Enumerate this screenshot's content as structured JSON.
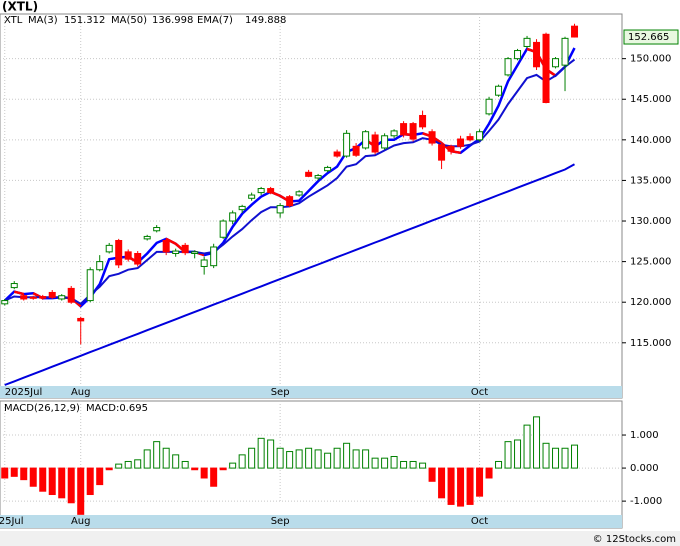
{
  "title": "(XTL)",
  "footer": "© 12Stocks.com",
  "chart_data": [
    {
      "type": "candlestick",
      "ticker": "XTL",
      "xlim": [
        -0.5,
        65
      ],
      "xticks": [
        {
          "value": 0,
          "label": "2025Jul"
        },
        {
          "value": 8,
          "label": "Aug"
        },
        {
          "value": 29,
          "label": "Sep"
        },
        {
          "value": 50,
          "label": "Oct"
        }
      ],
      "ylim": [
        108.2,
        155.5
      ],
      "yticks": [
        {
          "value": 115,
          "label": "115.000"
        },
        {
          "value": 120,
          "label": "120.000"
        },
        {
          "value": 125,
          "label": "125.000"
        },
        {
          "value": 130,
          "label": "130.000"
        },
        {
          "value": 135,
          "label": "135.000"
        },
        {
          "value": 140,
          "label": "140.000"
        },
        {
          "value": 145,
          "label": "145.000"
        },
        {
          "value": 150,
          "label": "150.000"
        }
      ],
      "grid": true,
      "up_color": "#008000",
      "down_color": "#ff0000",
      "last_price": 152.665,
      "open": [
        119.8,
        121.8,
        120.8,
        120.6,
        120.7,
        121.2,
        120.4,
        121.7,
        118.0,
        120.2,
        124.0,
        126.2,
        127.6,
        126.2,
        126.0,
        127.8,
        128.8,
        127.6,
        126.0,
        127.0,
        126.0,
        124.4,
        124.5,
        128.0,
        130.0,
        131.4,
        132.8,
        133.5,
        134.0,
        131.0,
        133.0,
        133.2,
        136.0,
        135.3,
        136.2,
        138.5,
        138.0,
        139.2,
        139.0,
        140.6,
        139.0,
        140.5,
        142.0,
        142.0,
        143.0,
        141.0,
        139.4,
        139.2,
        140.1,
        140.4,
        140.0,
        143.2,
        145.5,
        148.0,
        150.0,
        151.5,
        152.0,
        153.0,
        149.0,
        149.2,
        154.0
      ],
      "high": [
        120.4,
        122.6,
        121.0,
        120.8,
        120.9,
        121.5,
        121.0,
        122.0,
        118.2,
        124.3,
        125.8,
        127.3,
        127.8,
        126.5,
        126.3,
        128.3,
        129.5,
        127.9,
        126.6,
        127.3,
        126.4,
        125.6,
        127.2,
        130.2,
        131.3,
        132.0,
        133.5,
        134.2,
        134.2,
        132.2,
        133.2,
        133.8,
        136.3,
        135.8,
        136.8,
        138.8,
        141.2,
        139.6,
        141.2,
        141.0,
        140.8,
        141.3,
        142.3,
        142.2,
        143.6,
        141.3,
        139.6,
        139.4,
        140.5,
        140.8,
        141.3,
        145.3,
        146.8,
        150.2,
        151.2,
        152.8,
        152.4,
        153.2,
        150.2,
        152.7,
        154.3
      ],
      "low": [
        119.6,
        121.6,
        120.2,
        120.3,
        120.3,
        120.4,
        120.2,
        119.8,
        114.8,
        120.0,
        123.8,
        126.0,
        124.2,
        125.0,
        124.4,
        127.6,
        128.6,
        125.8,
        125.6,
        125.8,
        125.4,
        123.4,
        124.2,
        127.8,
        129.6,
        131.0,
        132.5,
        133.2,
        133.3,
        130.4,
        131.7,
        133.0,
        135.4,
        135.0,
        136.0,
        137.8,
        137.8,
        137.9,
        138.8,
        138.2,
        138.8,
        140.2,
        140.3,
        139.8,
        141.3,
        139.3,
        136.4,
        138.2,
        138.9,
        139.8,
        139.8,
        143.0,
        145.3,
        147.8,
        149.8,
        151.3,
        148.6,
        144.5,
        148.8,
        146.0,
        152.6
      ],
      "close": [
        120.2,
        122.3,
        120.4,
        120.5,
        120.5,
        120.6,
        120.8,
        120.0,
        117.7,
        124.0,
        125.0,
        127.0,
        124.6,
        125.3,
        124.7,
        128.1,
        129.2,
        126.2,
        126.3,
        126.1,
        126.2,
        125.2,
        126.8,
        130.0,
        131.0,
        131.8,
        133.2,
        134.0,
        133.5,
        131.9,
        131.9,
        133.6,
        135.5,
        135.6,
        136.6,
        138.0,
        140.8,
        138.1,
        141.0,
        138.5,
        140.5,
        141.1,
        140.6,
        140.1,
        141.6,
        139.6,
        137.5,
        138.6,
        139.2,
        140.0,
        141.0,
        145.0,
        146.6,
        150.0,
        151.0,
        152.5,
        149.0,
        144.6,
        150.0,
        152.5,
        152.665
      ],
      "series": [
        {
          "name": "MA(3)",
          "color": "#0000ff",
          "down_color": "#ff0000",
          "values": [
            120.2,
            121.3,
            121.0,
            121.1,
            120.5,
            120.5,
            120.6,
            120.5,
            119.5,
            120.6,
            122.2,
            125.3,
            125.5,
            125.6,
            124.9,
            126.0,
            127.3,
            127.8,
            127.2,
            126.2,
            126.2,
            125.8,
            126.1,
            127.3,
            129.3,
            130.9,
            132.0,
            133.0,
            133.6,
            133.1,
            132.4,
            132.5,
            133.7,
            134.9,
            135.9,
            136.7,
            138.5,
            139.0,
            140.0,
            139.2,
            140.0,
            140.0,
            140.7,
            140.6,
            140.8,
            140.4,
            139.6,
            138.6,
            138.4,
            139.3,
            140.1,
            142.0,
            144.2,
            147.2,
            149.2,
            151.2,
            150.8,
            148.7,
            147.9,
            149.0,
            151.312
          ]
        },
        {
          "name": "MA(50)",
          "color": "#0000dd",
          "values": [
            109.8,
            110.25,
            110.7,
            111.15,
            111.6,
            112.05,
            112.5,
            112.95,
            113.4,
            113.85,
            114.3,
            114.75,
            115.2,
            115.65,
            116.1,
            116.55,
            117.0,
            117.45,
            117.9,
            118.35,
            118.8,
            119.25,
            119.7,
            120.15,
            120.6,
            121.05,
            121.5,
            121.95,
            122.4,
            122.85,
            123.3,
            123.75,
            124.2,
            124.65,
            125.1,
            125.55,
            126.0,
            126.45,
            126.9,
            127.35,
            127.8,
            128.25,
            128.7,
            129.15,
            129.6,
            130.05,
            130.5,
            130.95,
            131.4,
            131.85,
            132.3,
            132.75,
            133.2,
            133.65,
            134.1,
            134.55,
            135.0,
            135.45,
            135.9,
            136.35,
            136.998
          ]
        },
        {
          "name": "EMA(7)",
          "color": "#1010d0",
          "values": [
            120.2,
            120.7,
            120.6,
            120.6,
            120.6,
            120.6,
            120.6,
            120.5,
            119.8,
            120.9,
            121.9,
            123.2,
            123.5,
            124.0,
            124.2,
            125.2,
            126.2,
            126.2,
            126.2,
            126.2,
            126.2,
            126.0,
            126.2,
            127.1,
            128.1,
            129.0,
            130.1,
            131.1,
            131.7,
            131.7,
            131.8,
            132.2,
            133.0,
            133.7,
            134.4,
            135.3,
            136.7,
            137.0,
            138.0,
            138.1,
            138.7,
            139.3,
            139.6,
            139.7,
            140.2,
            140.0,
            139.4,
            139.2,
            139.2,
            139.4,
            139.8,
            141.1,
            142.5,
            144.4,
            146.0,
            147.6,
            148.0,
            147.2,
            147.9,
            149.0,
            149.888
          ]
        }
      ]
    },
    {
      "type": "histogram",
      "title": "MACD(26,12,9)",
      "current_label": "MACD:0.695",
      "xlim": [
        -0.5,
        65
      ],
      "xticks": [
        {
          "value": 0,
          "label": "2025Jul"
        },
        {
          "value": 8,
          "label": "Aug"
        },
        {
          "value": 29,
          "label": "Sep"
        },
        {
          "value": 50,
          "label": "Oct"
        }
      ],
      "ylim": [
        -1.42,
        2.03
      ],
      "yticks": [
        {
          "value": 1,
          "label": "1.000"
        },
        {
          "value": 0,
          "label": "0.000"
        },
        {
          "value": -1,
          "label": "-1.000"
        }
      ],
      "grid": true,
      "up_color": "#008000",
      "down_color": "#ff0000",
      "values": [
        -0.3,
        -0.25,
        -0.35,
        -0.55,
        -0.7,
        -0.8,
        -0.9,
        -1.05,
        -1.4,
        -0.8,
        -0.5,
        -0.05,
        0.12,
        0.2,
        0.25,
        0.55,
        0.8,
        0.6,
        0.4,
        0.2,
        -0.05,
        -0.3,
        -0.55,
        -0.05,
        0.15,
        0.4,
        0.6,
        0.9,
        0.85,
        0.6,
        0.5,
        0.55,
        0.6,
        0.55,
        0.45,
        0.6,
        0.75,
        0.55,
        0.55,
        0.3,
        0.3,
        0.35,
        0.2,
        0.2,
        0.15,
        -0.4,
        -0.9,
        -1.1,
        -1.15,
        -1.1,
        -0.85,
        -0.3,
        0.2,
        0.8,
        0.85,
        1.3,
        1.55,
        0.75,
        0.6,
        0.6,
        0.695
      ]
    }
  ]
}
